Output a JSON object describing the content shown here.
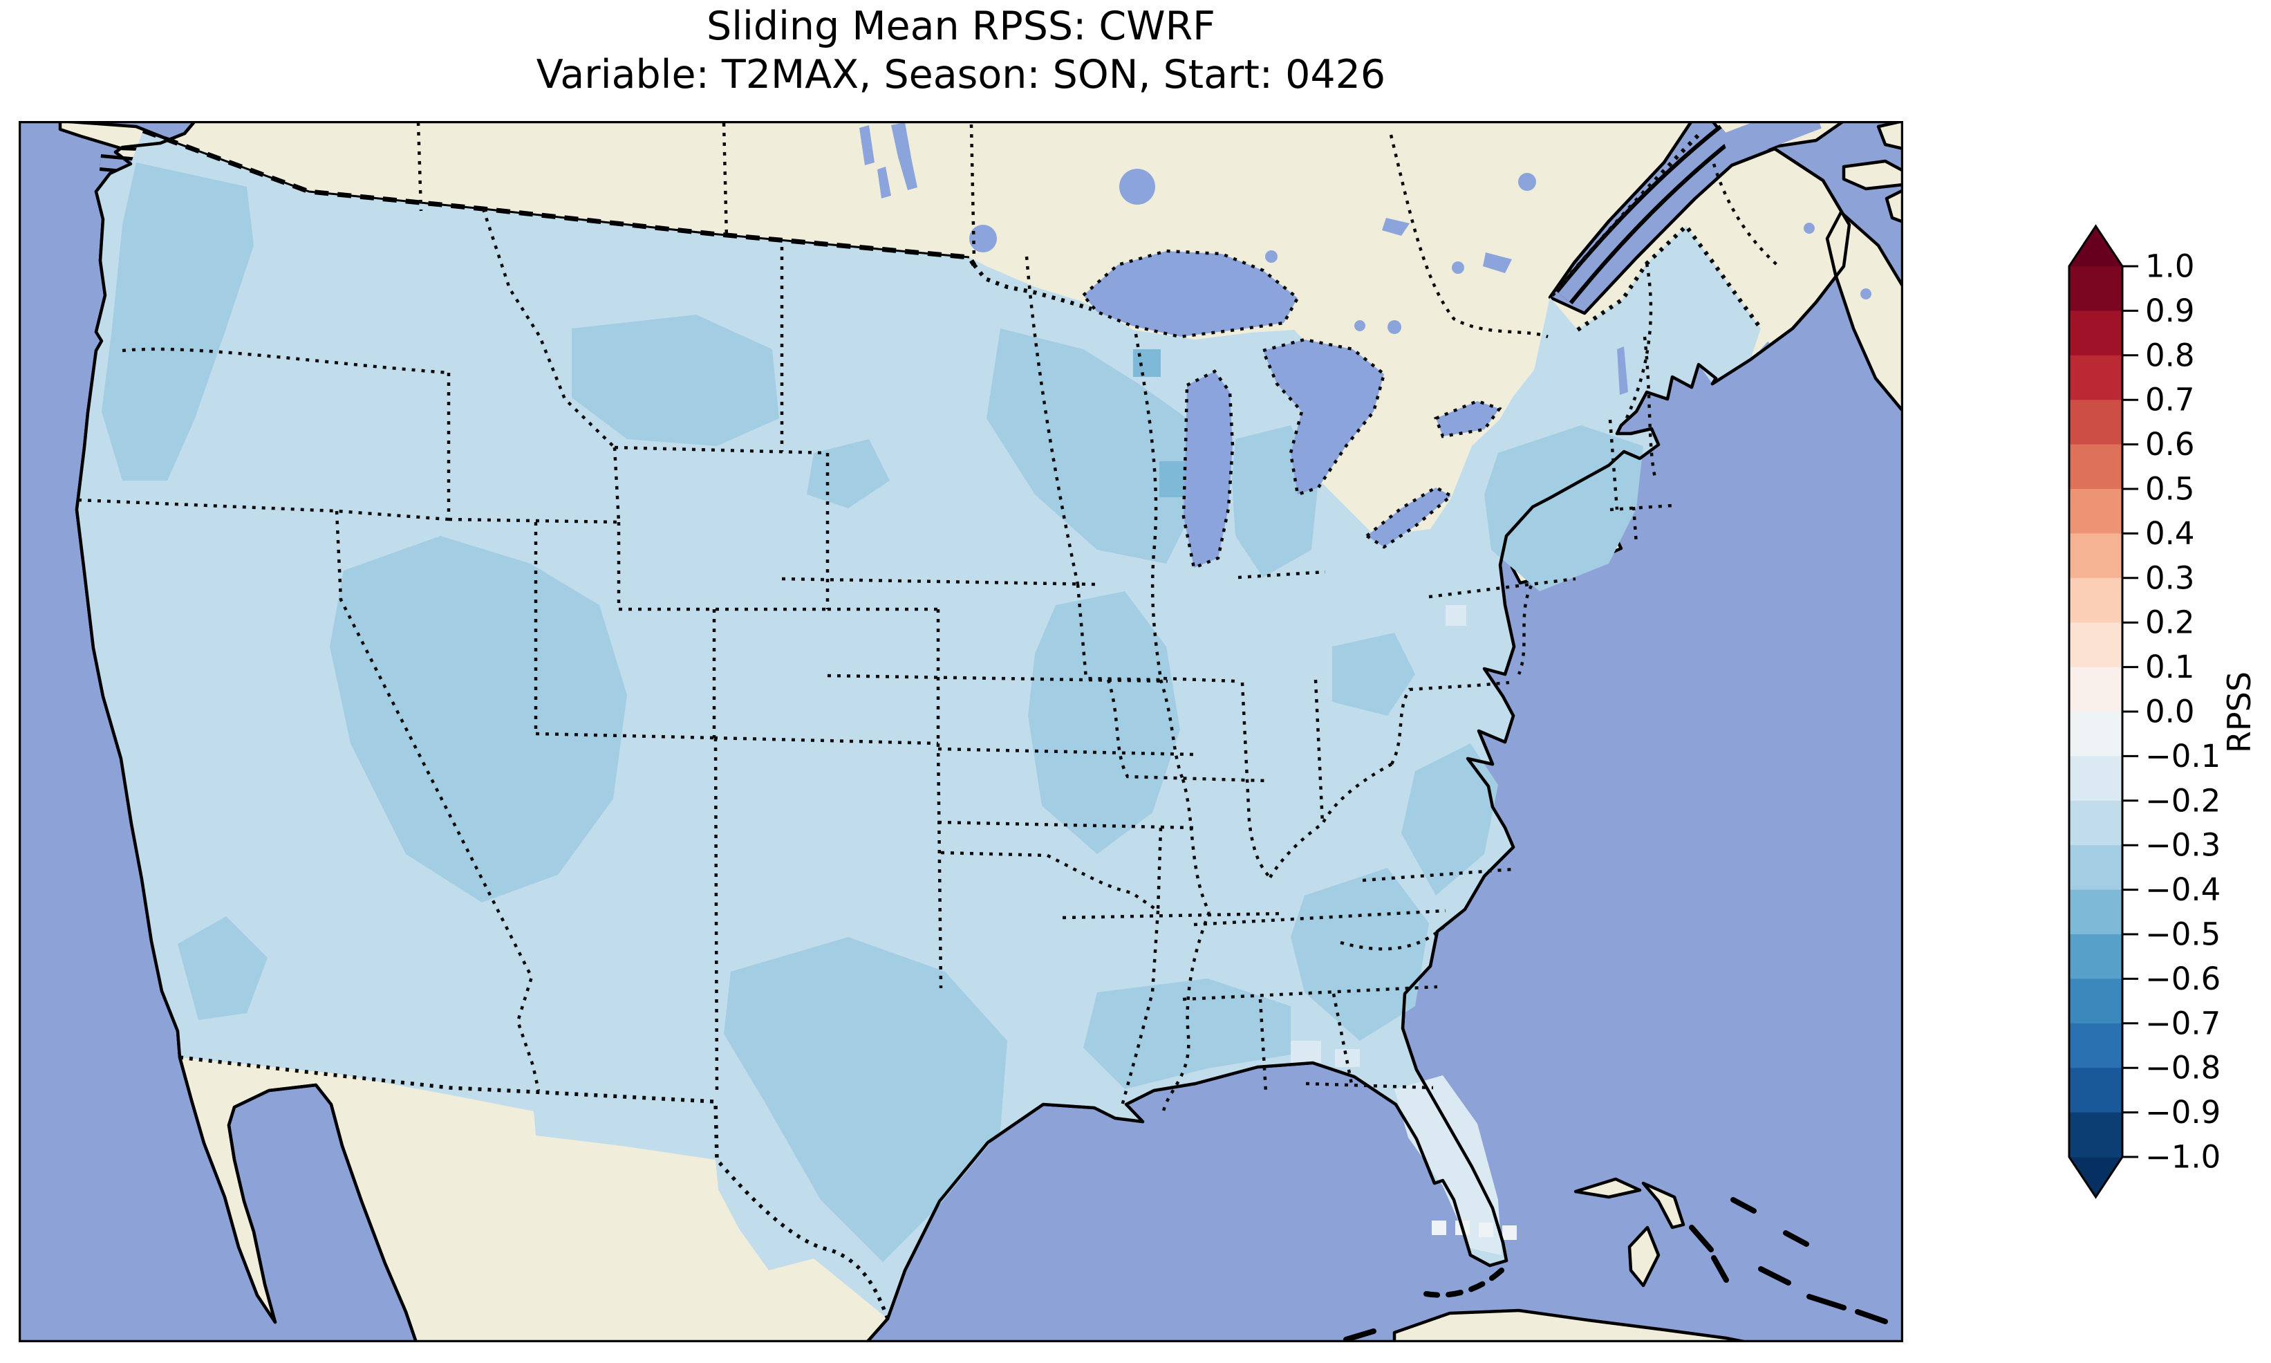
{
  "figure": {
    "title_line1": "Sliding Mean RPSS: CWRF",
    "title_line2": "Variable: T2MAX, Season: SON, Start: 0426",
    "statistic": "Sliding Mean",
    "metric": "RPSS",
    "model": "CWRF",
    "variable": "T2MAX",
    "season": "SON",
    "start": "0426"
  },
  "colorbar": {
    "label": "RPSS",
    "orientation": "vertical",
    "extend": "both",
    "colormap": "RdBu",
    "tick_labels": [
      "1.0",
      "0.9",
      "0.8",
      "0.7",
      "0.6",
      "0.5",
      "0.4",
      "0.3",
      "0.2",
      "0.1",
      "0.0",
      "−0.1",
      "−0.2",
      "−0.3",
      "−0.4",
      "−0.5",
      "−0.6",
      "−0.7",
      "−0.8",
      "−0.9",
      "−1.0"
    ],
    "tick_values": [
      1.0,
      0.9,
      0.8,
      0.7,
      0.6,
      0.5,
      0.4,
      0.3,
      0.2,
      0.1,
      0.0,
      -0.1,
      -0.2,
      -0.3,
      -0.4,
      -0.5,
      -0.6,
      -0.7,
      -0.8,
      -0.9,
      -1.0
    ],
    "segment_colors_top_to_bottom": [
      "#7a0622",
      "#9f1228",
      "#bb2a34",
      "#cd4e45",
      "#de715a",
      "#ed9475",
      "#f6b393",
      "#fbceb6",
      "#fce2d3",
      "#f9f0eb",
      "#eef3f5",
      "#dbeaf2",
      "#c1ddec",
      "#a2cde3",
      "#7eb9d7",
      "#57a0ca",
      "#3b88bd",
      "#2a71b2",
      "#1a5999",
      "#0c3e74"
    ],
    "over_arrow_color": "#67001f",
    "under_arrow_color": "#053061"
  },
  "map_colors": {
    "ocean": "#8da3d7",
    "lake": "#8ba5dc",
    "land_non_us": "#f0eedb",
    "coastline": "#000000",
    "bin_neg0_0to0_1": "#eef3f5",
    "bin_neg0_1to0_2": "#dbeaf2",
    "bin_neg0_2to0_3": "#c1ddec",
    "bin_neg0_3to0_4": "#a2cde3",
    "bin_neg0_4to0_5": "#7eb9d7"
  },
  "chart_data": {
    "type": "heatmap",
    "title": "Sliding Mean RPSS: CWRF — Variable: T2MAX, Season: SON, Start: 0426",
    "value_label": "RPSS",
    "colormap": "RdBu",
    "color_range": [
      -1.0,
      1.0
    ],
    "color_step": 0.1,
    "legend_position": "right vertical colorbar with triangular over/under arrows",
    "geography": "Contiguous United States choropleth grid; Canada, Mexico, Cuba and Bahamas shown as unshaded land; oceans and Great Lakes in blue",
    "displayed_value_range": [
      -0.5,
      0.0
    ],
    "regions": [
      {
        "region": "Pacific Northwest (W Washington / W Oregon)",
        "rpss_approx": -0.35
      },
      {
        "region": "California coast and Central Valley",
        "rpss_approx": -0.25
      },
      {
        "region": "Great Basin (Nevada / Utah / N Arizona)",
        "rpss_approx": -0.35
      },
      {
        "region": "Southern California desert",
        "rpss_approx": -0.35
      },
      {
        "region": "Montana",
        "rpss_approx": -0.35
      },
      {
        "region": "Northern Plains (Dakotas, Nebraska, Kansas)",
        "rpss_approx": -0.25
      },
      {
        "region": "Upper Midwest (Minnesota / Wisconsin / Michigan)",
        "rpss_approx": -0.35
      },
      {
        "region": "Illinois / Missouri corridor",
        "rpss_approx": -0.35
      },
      {
        "region": "Ohio Valley and Kentucky / Tennessee",
        "rpss_approx": -0.25
      },
      {
        "region": "Texas (most of state)",
        "rpss_approx": -0.35
      },
      {
        "region": "Texas panhandle",
        "rpss_approx": -0.25
      },
      {
        "region": "Gulf Coast (Louisiana / Mississippi / Alabama)",
        "rpss_approx": -0.35
      },
      {
        "region": "Georgia / South Carolina",
        "rpss_approx": -0.35
      },
      {
        "region": "Coastal Carolinas",
        "rpss_approx": -0.35
      },
      {
        "region": "Mid-Atlantic (Virginia / Maryland / WV)",
        "rpss_approx": -0.25
      },
      {
        "region": "Southern New York / Pennsylvania / S New England",
        "rpss_approx": -0.35
      },
      {
        "region": "Maine and northern New England",
        "rpss_approx": -0.25
      },
      {
        "region": "Florida peninsula",
        "rpss_approx": -0.15
      },
      {
        "region": "Grid cells just south of Florida tip",
        "rpss_approx": -0.05
      }
    ],
    "notes": "All CONUS grid cells are negative (light-to-medium blues between 0.0 and -0.5); no positive (red) RPSS values appear on the map."
  }
}
